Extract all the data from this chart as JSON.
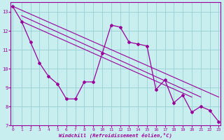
{
  "xlabel": "Windchill (Refroidissement éolien,°C)",
  "background_color": "#c8eef0",
  "grid_color": "#9ed4d6",
  "line_color": "#990099",
  "x_data": [
    0,
    1,
    2,
    3,
    4,
    5,
    6,
    7,
    8,
    9,
    10,
    11,
    12,
    13,
    14,
    15,
    16,
    17,
    18,
    19,
    20,
    21,
    22,
    23
  ],
  "line1": [
    13.3,
    12.5,
    11.4,
    10.3,
    9.6,
    9.2,
    8.4,
    8.4,
    9.3,
    9.3,
    10.8,
    12.3,
    12.2,
    11.4,
    11.3,
    11.2,
    8.9,
    9.4,
    8.2,
    8.6,
    7.7,
    8.0,
    7.8,
    7.2
  ],
  "trend1_x": [
    0,
    23
  ],
  "trend1_y": [
    13.3,
    8.5
  ],
  "trend2_x": [
    1,
    21
  ],
  "trend2_y": [
    12.8,
    8.5
  ],
  "trend3_x": [
    1,
    20
  ],
  "trend3_y": [
    12.5,
    8.5
  ],
  "ylim": [
    7,
    13.5
  ],
  "xlim": [
    -0.2,
    23.2
  ],
  "yticks": [
    7,
    8,
    9,
    10,
    11,
    12,
    13
  ],
  "xticks": [
    0,
    1,
    2,
    3,
    4,
    5,
    6,
    7,
    8,
    9,
    10,
    11,
    12,
    13,
    14,
    15,
    16,
    17,
    18,
    19,
    20,
    21,
    22,
    23
  ]
}
